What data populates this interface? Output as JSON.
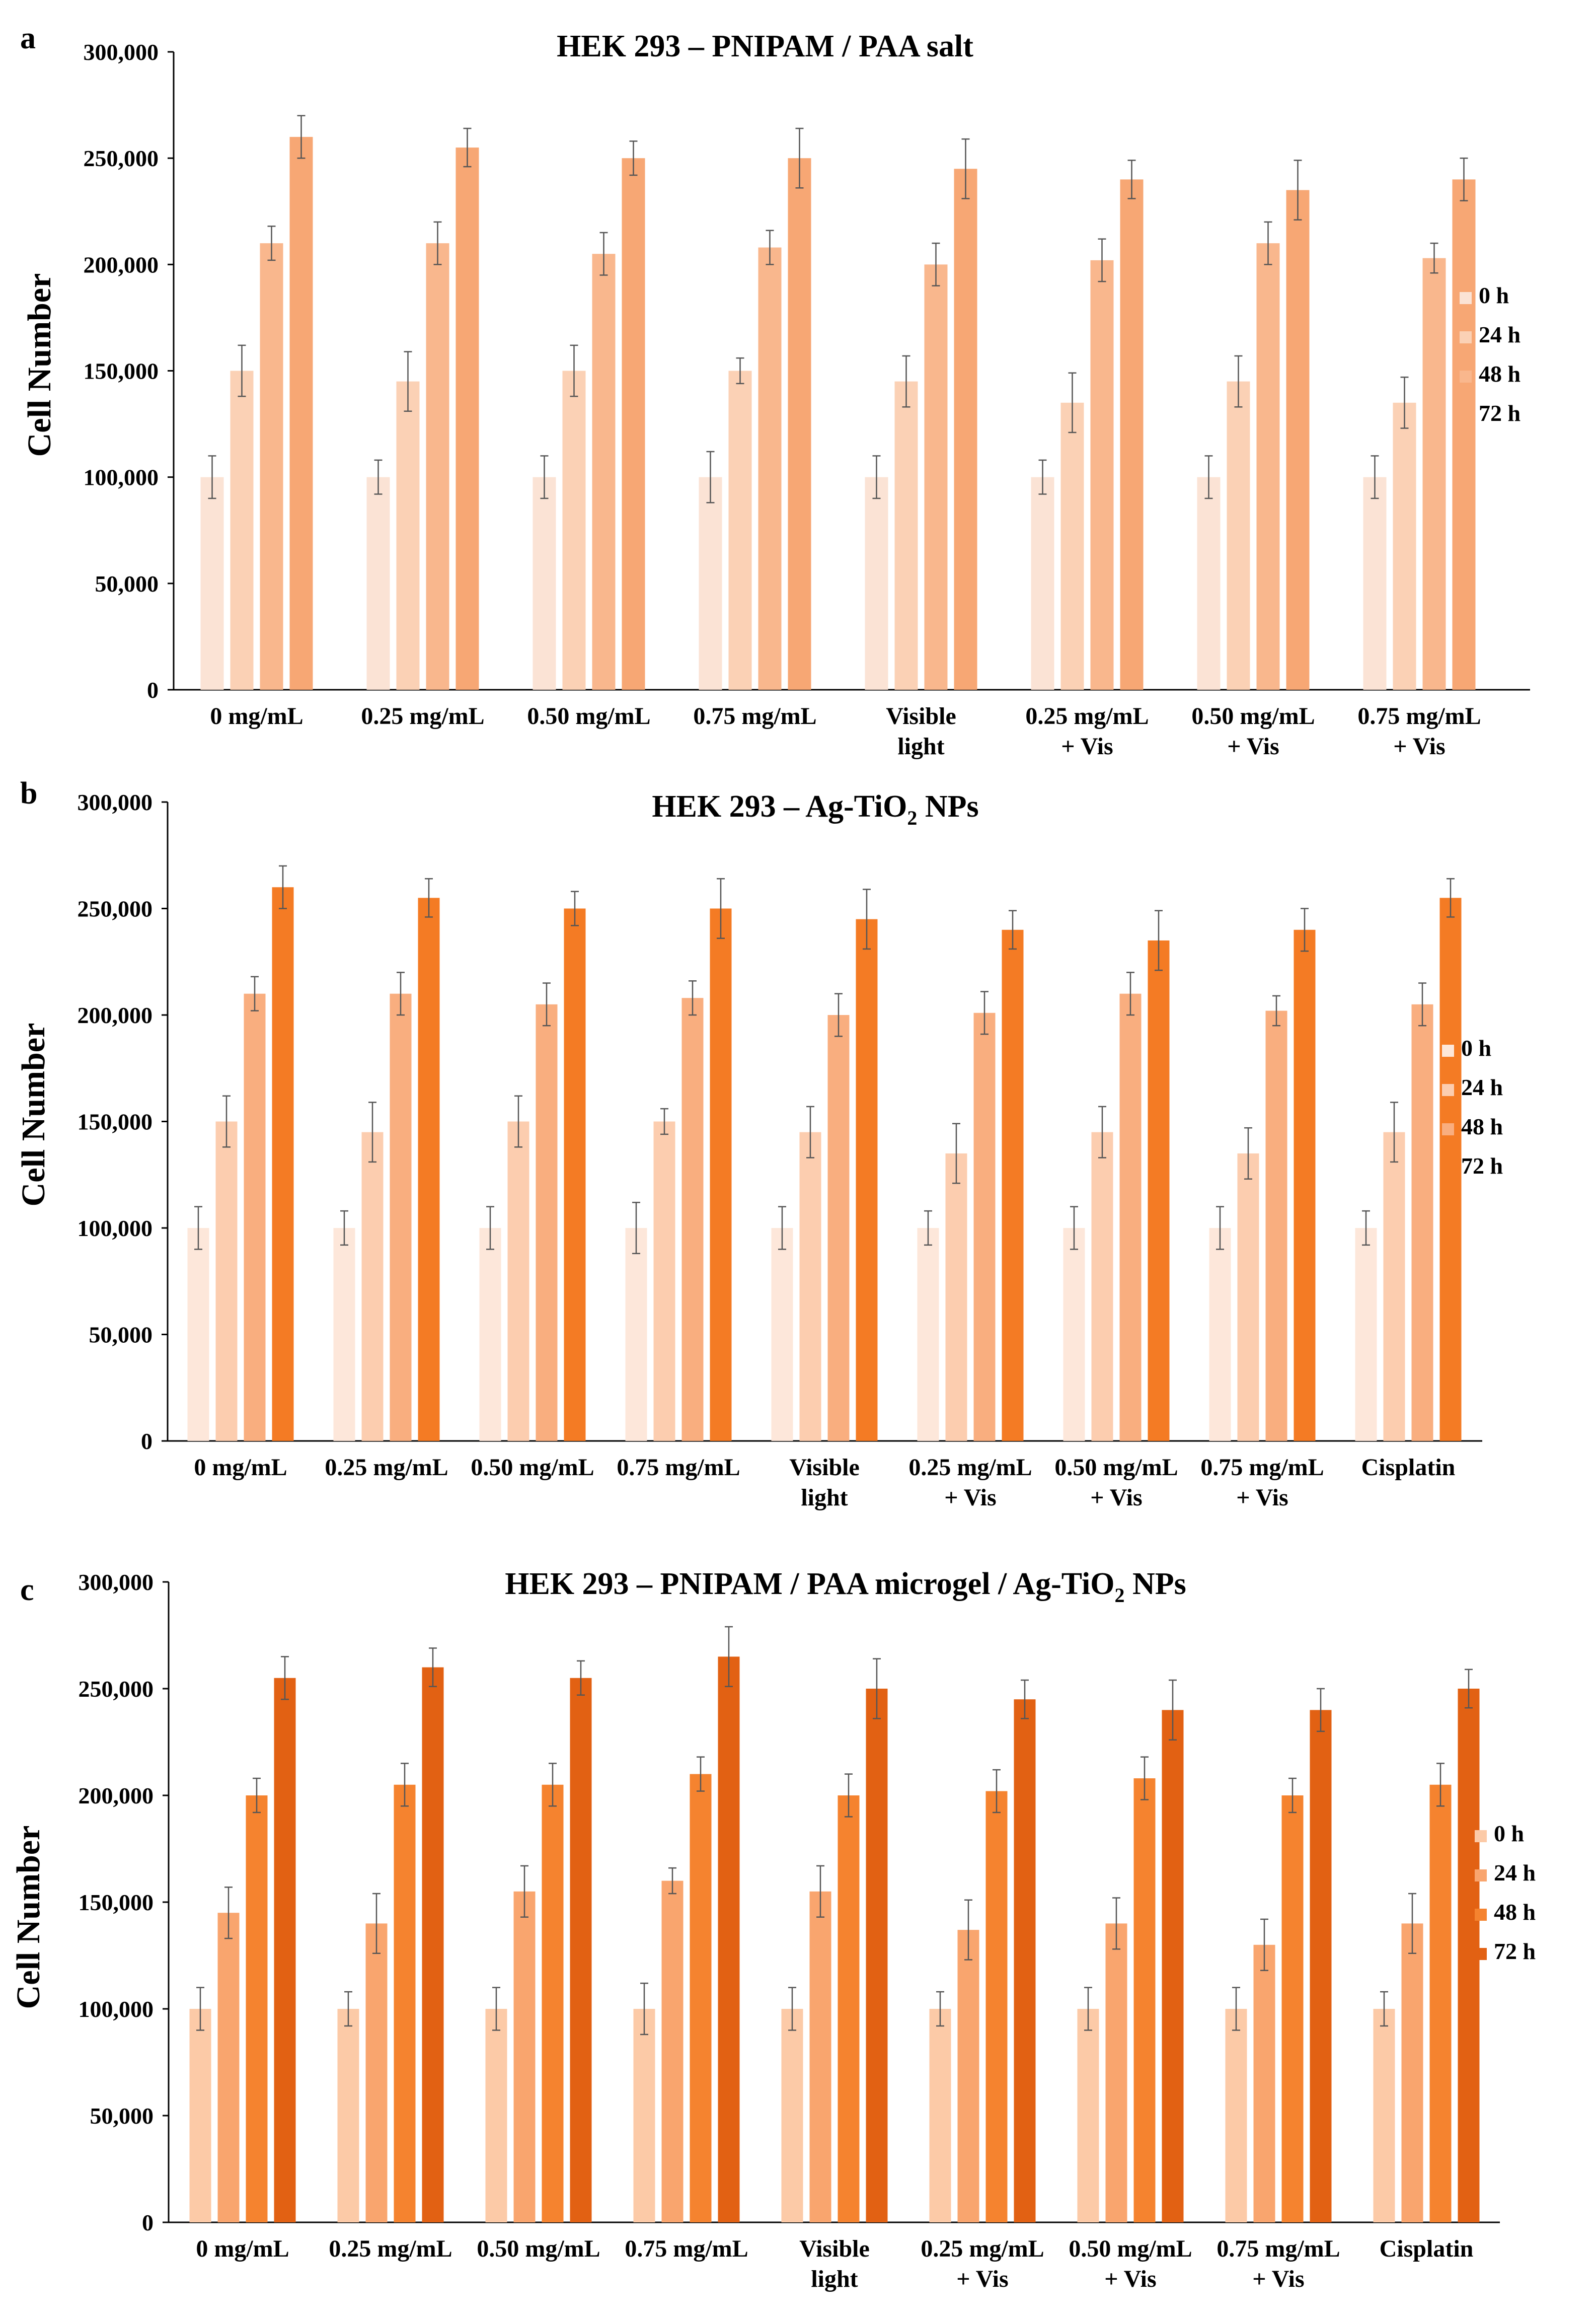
{
  "figure": {
    "colors": {
      "axis": "#000000",
      "error_bar": "#555555"
    }
  },
  "chart_data": [
    {
      "id": "a",
      "panel_label": "a",
      "type": "bar",
      "title": "HEK 293 – PNIPAM / PAA salt",
      "ylabel": "Cell Number",
      "xlabel": "",
      "ylim": [
        0,
        300000
      ],
      "y_ticks": [
        0,
        50000,
        100000,
        150000,
        200000,
        250000,
        300000
      ],
      "y_tick_labels": [
        "0",
        "50,000",
        "100,000",
        "150,000",
        "200,000",
        "250,000",
        "300,000"
      ],
      "categories": [
        [
          "0 mg/mL"
        ],
        [
          "0.25 mg/mL"
        ],
        [
          "0.50 mg/mL"
        ],
        [
          "0.75 mg/mL"
        ],
        [
          "Visible",
          "light"
        ],
        [
          "0.25 mg/mL",
          "+ Vis"
        ],
        [
          "0.50 mg/mL",
          "+ Vis"
        ],
        [
          "0.75 mg/mL",
          "+ Vis"
        ]
      ],
      "legend_position": "right",
      "series": [
        {
          "name": "0 h",
          "color": "#fbe3d5",
          "values": [
            100000,
            100000,
            100000,
            100000,
            100000,
            100000,
            100000,
            100000
          ],
          "errors": [
            10000,
            8000,
            10000,
            12000,
            10000,
            8000,
            10000,
            10000
          ]
        },
        {
          "name": "24 h",
          "color": "#fbd1b5",
          "values": [
            150000,
            145000,
            150000,
            150000,
            145000,
            135000,
            145000,
            135000
          ],
          "errors": [
            12000,
            14000,
            12000,
            6000,
            12000,
            14000,
            12000,
            12000
          ]
        },
        {
          "name": "48 h",
          "color": "#f9b78d",
          "values": [
            210000,
            210000,
            205000,
            208000,
            200000,
            202000,
            210000,
            203000
          ],
          "errors": [
            8000,
            10000,
            10000,
            8000,
            10000,
            10000,
            10000,
            7000
          ]
        },
        {
          "name": "72 h",
          "color": "#f7a774",
          "values": [
            260000,
            255000,
            250000,
            250000,
            245000,
            240000,
            235000,
            240000
          ],
          "errors": [
            10000,
            9000,
            8000,
            14000,
            14000,
            9000,
            14000,
            10000
          ]
        }
      ]
    },
    {
      "id": "b",
      "panel_label": "b",
      "type": "bar",
      "title": "HEK 293 – Ag-TiO",
      "title_sub": "2",
      "title_suffix": " NPs",
      "ylabel": "Cell Number",
      "xlabel": "",
      "ylim": [
        0,
        300000
      ],
      "y_ticks": [
        0,
        50000,
        100000,
        150000,
        200000,
        250000,
        300000
      ],
      "y_tick_labels": [
        "0",
        "50,000",
        "100,000",
        "150,000",
        "200,000",
        "250,000",
        "300,000"
      ],
      "categories": [
        [
          "0 mg/mL"
        ],
        [
          "0.25 mg/mL"
        ],
        [
          "0.50 mg/mL"
        ],
        [
          "0.75 mg/mL"
        ],
        [
          "Visible",
          "light"
        ],
        [
          "0.25 mg/mL",
          "+ Vis"
        ],
        [
          "0.50 mg/mL",
          "+ Vis"
        ],
        [
          "0.75 mg/mL",
          "+ Vis"
        ],
        [
          "Cisplatin"
        ]
      ],
      "legend_position": "right",
      "series": [
        {
          "name": "0 h",
          "color": "#fde7da",
          "values": [
            100000,
            100000,
            100000,
            100000,
            100000,
            100000,
            100000,
            100000,
            100000
          ],
          "errors": [
            10000,
            8000,
            10000,
            12000,
            10000,
            8000,
            10000,
            10000,
            8000
          ]
        },
        {
          "name": "24 h",
          "color": "#fccdaf",
          "values": [
            150000,
            145000,
            150000,
            150000,
            145000,
            135000,
            145000,
            135000,
            145000
          ],
          "errors": [
            12000,
            14000,
            12000,
            6000,
            12000,
            14000,
            12000,
            12000,
            14000
          ]
        },
        {
          "name": "48 h",
          "color": "#f9ae7f",
          "values": [
            210000,
            210000,
            205000,
            208000,
            200000,
            201000,
            210000,
            202000,
            205000
          ],
          "errors": [
            8000,
            10000,
            10000,
            8000,
            10000,
            10000,
            10000,
            7000,
            10000
          ]
        },
        {
          "name": "72 h",
          "color": "#f47b24",
          "values": [
            260000,
            255000,
            250000,
            250000,
            245000,
            240000,
            235000,
            240000,
            255000
          ],
          "errors": [
            10000,
            9000,
            8000,
            14000,
            14000,
            9000,
            14000,
            10000,
            9000
          ]
        }
      ]
    },
    {
      "id": "c",
      "panel_label": "c",
      "type": "bar",
      "title": "HEK 293 – PNIPAM / PAA microgel / Ag-TiO",
      "title_sub": "2",
      "title_suffix": " NPs",
      "ylabel": "Cell Number",
      "xlabel": "",
      "ylim": [
        0,
        300000
      ],
      "y_ticks": [
        0,
        50000,
        100000,
        150000,
        200000,
        250000,
        300000
      ],
      "y_tick_labels": [
        "0",
        "50,000",
        "100,000",
        "150,000",
        "200,000",
        "250,000",
        "300,000"
      ],
      "categories": [
        [
          "0 mg/mL"
        ],
        [
          "0.25 mg/mL"
        ],
        [
          "0.50 mg/mL"
        ],
        [
          "0.75 mg/mL"
        ],
        [
          "Visible",
          "light"
        ],
        [
          "0.25 mg/mL",
          "+ Vis"
        ],
        [
          "0.50 mg/mL",
          "+ Vis"
        ],
        [
          "0.75 mg/mL",
          "+ Vis"
        ],
        [
          "Cisplatin"
        ]
      ],
      "legend_position": "right",
      "series": [
        {
          "name": "0 h",
          "color": "#fccaa7",
          "values": [
            100000,
            100000,
            100000,
            100000,
            100000,
            100000,
            100000,
            100000,
            100000
          ],
          "errors": [
            10000,
            8000,
            10000,
            12000,
            10000,
            8000,
            10000,
            10000,
            8000
          ]
        },
        {
          "name": "24 h",
          "color": "#f9a56e",
          "values": [
            145000,
            140000,
            155000,
            160000,
            155000,
            137000,
            140000,
            130000,
            140000
          ],
          "errors": [
            12000,
            14000,
            12000,
            6000,
            12000,
            14000,
            12000,
            12000,
            14000
          ]
        },
        {
          "name": "48 h",
          "color": "#f5832f",
          "values": [
            200000,
            205000,
            205000,
            210000,
            200000,
            202000,
            208000,
            200000,
            205000
          ],
          "errors": [
            8000,
            10000,
            10000,
            8000,
            10000,
            10000,
            10000,
            8000,
            10000
          ]
        },
        {
          "name": "72 h",
          "color": "#e26113",
          "values": [
            255000,
            260000,
            255000,
            265000,
            250000,
            245000,
            240000,
            240000,
            250000
          ],
          "errors": [
            10000,
            9000,
            8000,
            14000,
            14000,
            9000,
            14000,
            10000,
            9000
          ]
        }
      ]
    }
  ]
}
